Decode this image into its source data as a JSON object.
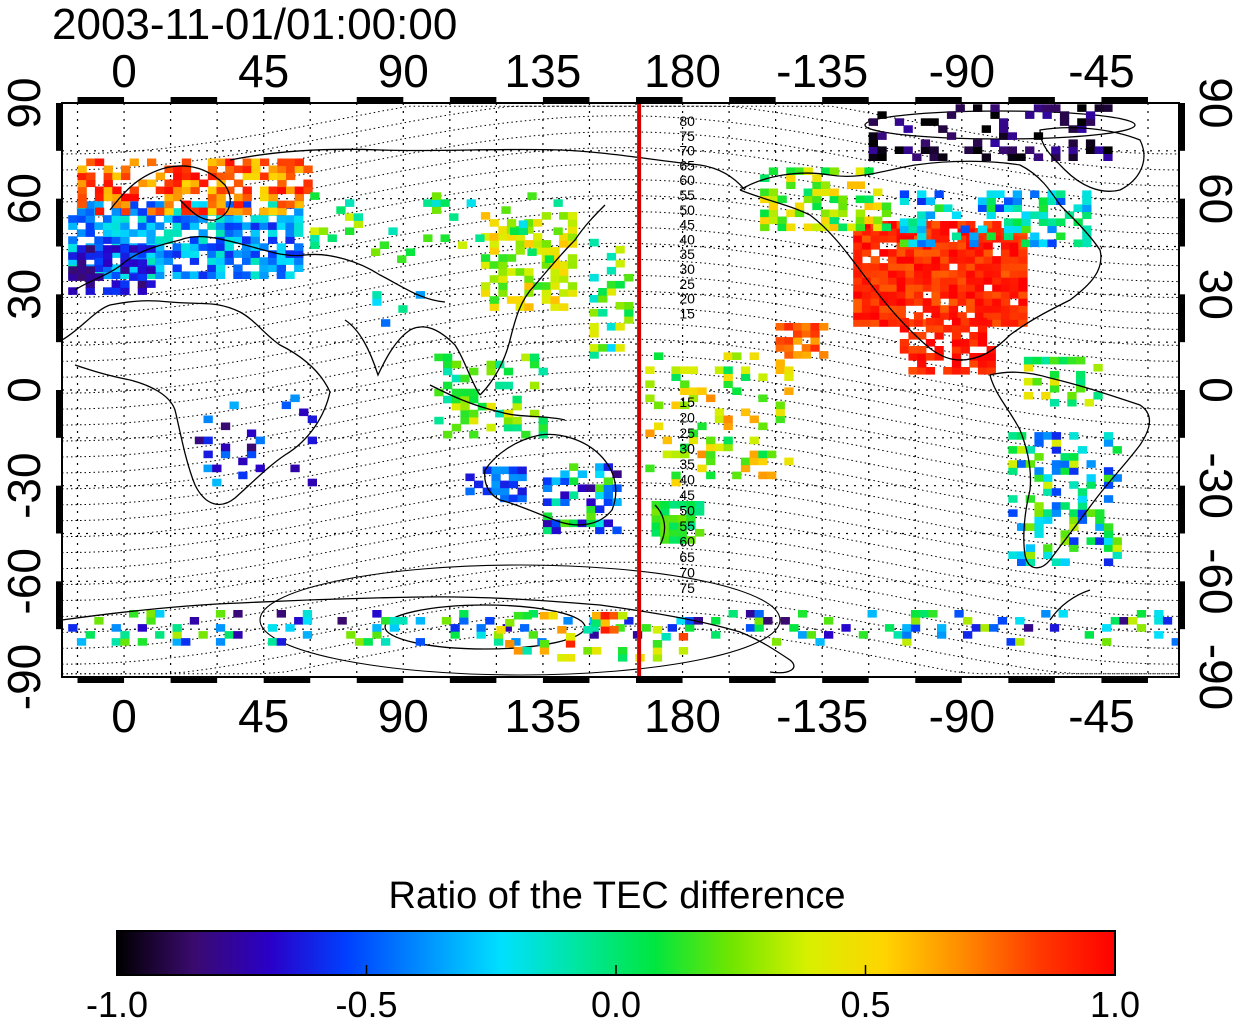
{
  "header": {
    "timestamp": "2003-11-01/01:00:00"
  },
  "map": {
    "lon_ticks": [
      "0",
      "45",
      "90",
      "135",
      "180",
      "-135",
      "-90",
      "-45"
    ],
    "lat_ticks": [
      "90",
      "60",
      "30",
      "0",
      "-30",
      "-60",
      "-90"
    ],
    "lon_range": [
      -20,
      340
    ],
    "lat_range": [
      -90,
      90
    ],
    "highlight_meridian_lon": 166,
    "highlight_color": "#d40000",
    "north_contour_labels": [
      "80",
      "75",
      "70",
      "65",
      "60",
      "55",
      "50",
      "45",
      "40",
      "35",
      "30",
      "25",
      "20",
      "15"
    ],
    "south_contour_labels": [
      "15",
      "20",
      "25",
      "30",
      "35",
      "40",
      "45",
      "50",
      "55",
      "60",
      "65",
      "70",
      "75"
    ]
  },
  "colorbar": {
    "title": "Ratio of the TEC difference",
    "tick_labels": [
      "-1.0",
      "-0.5",
      "0.0",
      "0.5",
      "1.0"
    ],
    "range": [
      -1.0,
      1.0
    ],
    "colors": [
      "#000000",
      "#3a0a6e",
      "#2a00c8",
      "#0040ff",
      "#0090ff",
      "#00e0ff",
      "#00e6a0",
      "#00e640",
      "#70e600",
      "#d8f000",
      "#ffd400",
      "#ff8c00",
      "#ff3a00",
      "#ff0000"
    ]
  }
}
